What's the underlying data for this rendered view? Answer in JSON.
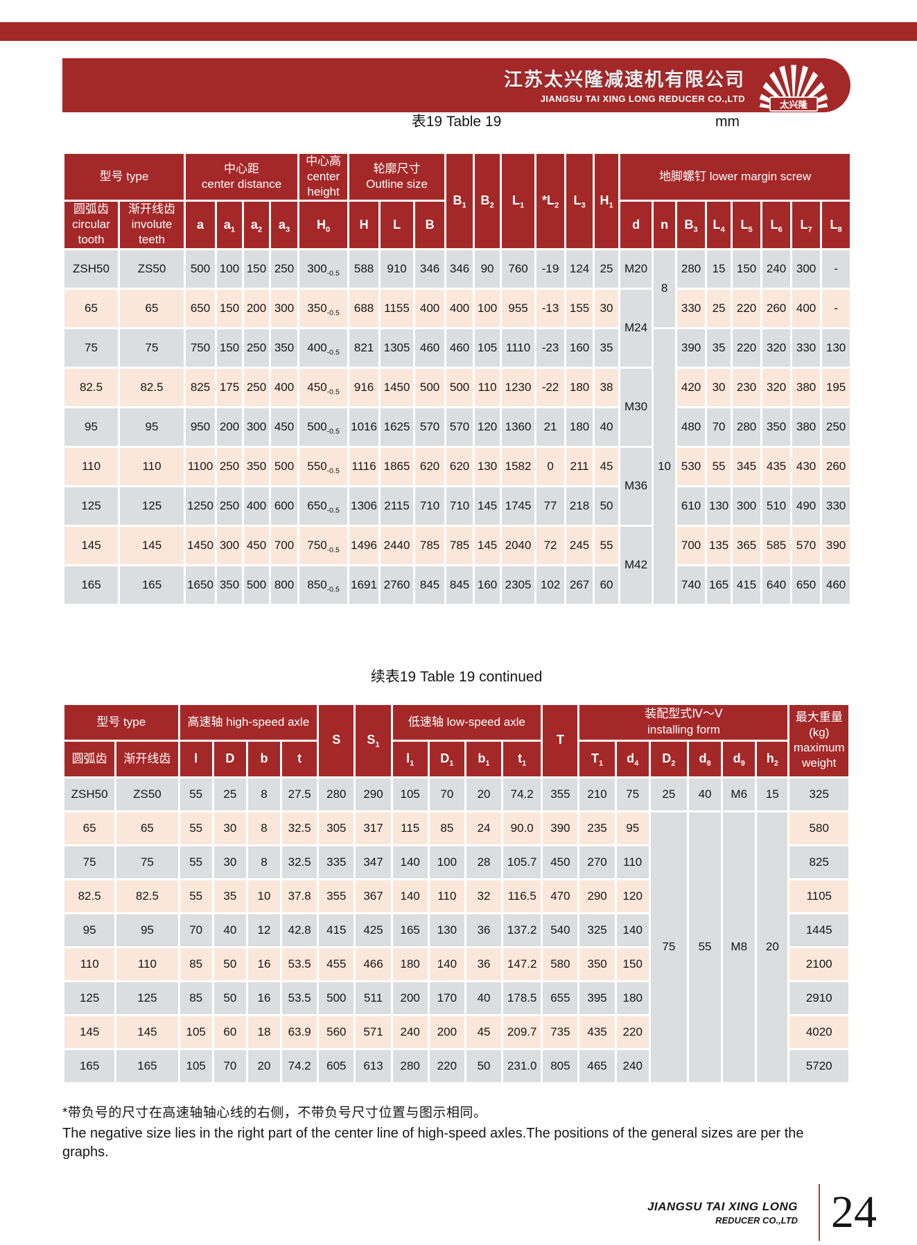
{
  "banner": {
    "company_cn": "江苏太兴隆减速机有限公司",
    "company_en": "JIANGSU TAI XING LONG REDUCER CO.,LTD",
    "logo_text": "太兴隆"
  },
  "page": {
    "table1_title": "表19 Table 19",
    "unit_label": "mm",
    "table2_title": "续表19 Table 19 continued",
    "note_cn": "*带负号的尺寸在高速轴轴心线的右侧，不带负号尺寸位置与图示相同。",
    "note_en": "The negative size lies in the right part of the center line of high-speed axles.The positions of the general sizes are per the graphs."
  },
  "footer": {
    "company_line1": "JIANGSU TAI XING LONG",
    "company_line2": "REDUCER CO.,LTD",
    "page_number": "24"
  },
  "table1": {
    "group_headers": [
      {
        "label": "型号 type",
        "colspan": 2
      },
      {
        "label": "中心距\ncenter distance",
        "colspan": 4
      },
      {
        "label": "中心高\ncenter\nheight"
      },
      {
        "label": "轮廓尺寸\nOutline size",
        "colspan": 3
      },
      {
        "label": "B~1",
        "rowspan": 2
      },
      {
        "label": "B~2",
        "rowspan": 2
      },
      {
        "label": "L~1",
        "rowspan": 2
      },
      {
        "label": "*L~2",
        "rowspan": 2
      },
      {
        "label": "L~3",
        "rowspan": 2
      },
      {
        "label": "H~1",
        "rowspan": 2
      },
      {
        "label": "地脚螺钉 lower margin screw",
        "colspan": 8
      }
    ],
    "sub_headers": [
      "圆弧齿\ncircular\ntooth",
      "渐开线齿\ninvolute\nteeth",
      "a",
      "a~1",
      "a~2",
      "a~3",
      "H~0",
      "H",
      "L",
      "B",
      "d",
      "n",
      "B~3",
      "L~4",
      "L~5",
      "L~6",
      "L~7",
      "L~8"
    ],
    "rows": [
      [
        "ZSH50",
        "ZS50",
        "500",
        "100",
        "150",
        "250",
        "300~-0.5",
        "588",
        "910",
        "346",
        "346",
        "90",
        "760",
        "-19",
        "124",
        "25",
        "M20",
        {
          "v": "8",
          "rs": 2
        },
        "280",
        "15",
        "150",
        "240",
        "300",
        "-"
      ],
      [
        "65",
        "65",
        "650",
        "150",
        "200",
        "300",
        "350~-0.5",
        "688",
        "1155",
        "400",
        "400",
        "100",
        "955",
        "-13",
        "155",
        "30",
        {
          "v": "M24",
          "rs": 2
        },
        null,
        "330",
        "25",
        "220",
        "260",
        "400",
        "-"
      ],
      [
        "75",
        "75",
        "750",
        "150",
        "250",
        "350",
        "400~-0.5",
        "821",
        "1305",
        "460",
        "460",
        "105",
        "1110",
        "-23",
        "160",
        "35",
        null,
        {
          "v": "10",
          "rs": 7
        },
        "390",
        "35",
        "220",
        "320",
        "330",
        "130"
      ],
      [
        "82.5",
        "82.5",
        "825",
        "175",
        "250",
        "400",
        "450~-0.5",
        "916",
        "1450",
        "500",
        "500",
        "110",
        "1230",
        "-22",
        "180",
        "38",
        {
          "v": "M30",
          "rs": 2
        },
        null,
        "420",
        "30",
        "230",
        "320",
        "380",
        "195"
      ],
      [
        "95",
        "95",
        "950",
        "200",
        "300",
        "450",
        "500~-0.5",
        "1016",
        "1625",
        "570",
        "570",
        "120",
        "1360",
        "21",
        "180",
        "40",
        null,
        null,
        "480",
        "70",
        "280",
        "350",
        "380",
        "250"
      ],
      [
        "110",
        "110",
        "1100",
        "250",
        "350",
        "500",
        "550~-0.5",
        "1116",
        "1865",
        "620",
        "620",
        "130",
        "1582",
        "0",
        "211",
        "45",
        {
          "v": "M36",
          "rs": 2
        },
        null,
        "530",
        "55",
        "345",
        "435",
        "430",
        "260"
      ],
      [
        "125",
        "125",
        "1250",
        "250",
        "400",
        "600",
        "650~-0.5",
        "1306",
        "2115",
        "710",
        "710",
        "145",
        "1745",
        "77",
        "218",
        "50",
        null,
        null,
        "610",
        "130",
        "300",
        "510",
        "490",
        "330"
      ],
      [
        "145",
        "145",
        "1450",
        "300",
        "450",
        "700",
        "750~-0.5",
        "1496",
        "2440",
        "785",
        "785",
        "145",
        "2040",
        "72",
        "245",
        "55",
        {
          "v": "M42",
          "rs": 2
        },
        null,
        "700",
        "135",
        "365",
        "585",
        "570",
        "390"
      ],
      [
        "165",
        "165",
        "1650",
        "350",
        "500",
        "800",
        "850~-0.5",
        "1691",
        "2760",
        "845",
        "845",
        "160",
        "2305",
        "102",
        "267",
        "60",
        null,
        null,
        "740",
        "165",
        "415",
        "640",
        "650",
        "460"
      ]
    ]
  },
  "table2": {
    "group_headers": [
      {
        "label": "型号 type",
        "colspan": 2
      },
      {
        "label": "高速轴 high-speed axle",
        "colspan": 4
      },
      {
        "label": "S",
        "rowspan": 2
      },
      {
        "label": "S~1",
        "rowspan": 2
      },
      {
        "label": "低速轴 low-speed axle",
        "colspan": 4
      },
      {
        "label": "T",
        "rowspan": 2
      },
      {
        "label": "装配型式Ⅳ～Ⅴ\ninstalling form",
        "colspan": 6
      },
      {
        "label": "最大重量\n(kg)\nmaximum\nweight",
        "rowspan": 2
      }
    ],
    "sub_headers": [
      "圆弧齿",
      "渐开线齿",
      "l",
      "D",
      "b",
      "t",
      "l~1",
      "D~1",
      "b~1",
      "t~1",
      "T~1",
      "d~4",
      "D~2",
      "d~8",
      "d~9",
      "h~2"
    ],
    "rows": [
      [
        "ZSH50",
        "ZS50",
        "55",
        "25",
        "8",
        "27.5",
        "280",
        "290",
        "105",
        "70",
        "20",
        "74.2",
        "355",
        "210",
        "75",
        "25",
        "40",
        "M6",
        "15",
        "325"
      ],
      [
        "65",
        "65",
        "55",
        "30",
        "8",
        "32.5",
        "305",
        "317",
        "115",
        "85",
        "24",
        "90.0",
        "390",
        "235",
        "95",
        {
          "v": "75",
          "rs": 8
        },
        {
          "v": "55",
          "rs": 8
        },
        {
          "v": "M8",
          "rs": 8
        },
        {
          "v": "20",
          "rs": 8
        },
        "580"
      ],
      [
        "75",
        "75",
        "55",
        "30",
        "8",
        "32.5",
        "335",
        "347",
        "140",
        "100",
        "28",
        "105.7",
        "450",
        "270",
        "110",
        null,
        null,
        null,
        null,
        "825"
      ],
      [
        "82.5",
        "82.5",
        "55",
        "35",
        "10",
        "37.8",
        "355",
        "367",
        "140",
        "110",
        "32",
        "116.5",
        "470",
        "290",
        "120",
        null,
        null,
        null,
        null,
        "1105"
      ],
      [
        "95",
        "95",
        "70",
        "40",
        "12",
        "42.8",
        "415",
        "425",
        "165",
        "130",
        "36",
        "137.2",
        "540",
        "325",
        "140",
        null,
        null,
        null,
        null,
        "1445"
      ],
      [
        "110",
        "110",
        "85",
        "50",
        "16",
        "53.5",
        "455",
        "466",
        "180",
        "140",
        "36",
        "147.2",
        "580",
        "350",
        "150",
        null,
        null,
        null,
        null,
        "2100"
      ],
      [
        "125",
        "125",
        "85",
        "50",
        "16",
        "53.5",
        "500",
        "511",
        "200",
        "170",
        "40",
        "178.5",
        "655",
        "395",
        "180",
        null,
        null,
        null,
        null,
        "2910"
      ],
      [
        "145",
        "145",
        "105",
        "60",
        "18",
        "63.9",
        "560",
        "571",
        "240",
        "200",
        "45",
        "209.7",
        "735",
        "435",
        "220",
        null,
        null,
        null,
        null,
        "4020"
      ],
      [
        "165",
        "165",
        "105",
        "70",
        "20",
        "74.2",
        "605",
        "613",
        "280",
        "220",
        "50",
        "231.0",
        "805",
        "465",
        "240",
        null,
        null,
        null,
        null,
        "5720"
      ]
    ]
  }
}
